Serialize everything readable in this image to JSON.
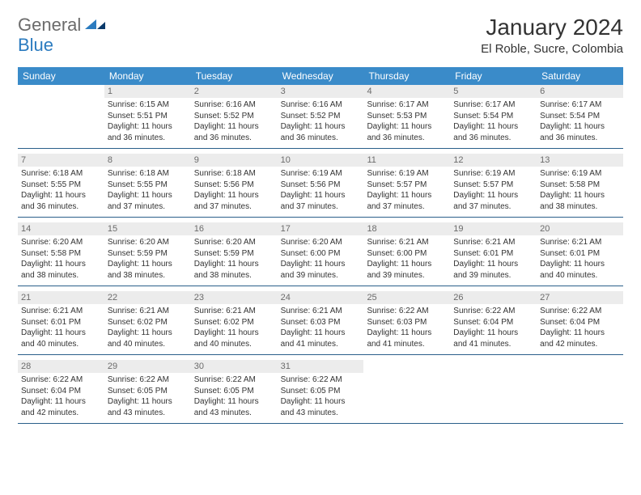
{
  "brand": {
    "part1": "General",
    "part2": "Blue"
  },
  "title": "January 2024",
  "location": "El Roble, Sucre, Colombia",
  "colors": {
    "header_bg": "#3a8bc9",
    "header_text": "#ffffff",
    "daynum_bg": "#ececec",
    "daynum_text": "#6b6b6b",
    "border": "#2a5f8a",
    "body_text": "#333333",
    "logo_gray": "#6b6b6b",
    "logo_blue": "#2b7bbf"
  },
  "weekdays": [
    "Sunday",
    "Monday",
    "Tuesday",
    "Wednesday",
    "Thursday",
    "Friday",
    "Saturday"
  ],
  "weeks": [
    [
      null,
      {
        "n": "1",
        "sr": "6:15 AM",
        "ss": "5:51 PM",
        "dl": "11 hours and 36 minutes."
      },
      {
        "n": "2",
        "sr": "6:16 AM",
        "ss": "5:52 PM",
        "dl": "11 hours and 36 minutes."
      },
      {
        "n": "3",
        "sr": "6:16 AM",
        "ss": "5:52 PM",
        "dl": "11 hours and 36 minutes."
      },
      {
        "n": "4",
        "sr": "6:17 AM",
        "ss": "5:53 PM",
        "dl": "11 hours and 36 minutes."
      },
      {
        "n": "5",
        "sr": "6:17 AM",
        "ss": "5:54 PM",
        "dl": "11 hours and 36 minutes."
      },
      {
        "n": "6",
        "sr": "6:17 AM",
        "ss": "5:54 PM",
        "dl": "11 hours and 36 minutes."
      }
    ],
    [
      {
        "n": "7",
        "sr": "6:18 AM",
        "ss": "5:55 PM",
        "dl": "11 hours and 36 minutes."
      },
      {
        "n": "8",
        "sr": "6:18 AM",
        "ss": "5:55 PM",
        "dl": "11 hours and 37 minutes."
      },
      {
        "n": "9",
        "sr": "6:18 AM",
        "ss": "5:56 PM",
        "dl": "11 hours and 37 minutes."
      },
      {
        "n": "10",
        "sr": "6:19 AM",
        "ss": "5:56 PM",
        "dl": "11 hours and 37 minutes."
      },
      {
        "n": "11",
        "sr": "6:19 AM",
        "ss": "5:57 PM",
        "dl": "11 hours and 37 minutes."
      },
      {
        "n": "12",
        "sr": "6:19 AM",
        "ss": "5:57 PM",
        "dl": "11 hours and 37 minutes."
      },
      {
        "n": "13",
        "sr": "6:19 AM",
        "ss": "5:58 PM",
        "dl": "11 hours and 38 minutes."
      }
    ],
    [
      {
        "n": "14",
        "sr": "6:20 AM",
        "ss": "5:58 PM",
        "dl": "11 hours and 38 minutes."
      },
      {
        "n": "15",
        "sr": "6:20 AM",
        "ss": "5:59 PM",
        "dl": "11 hours and 38 minutes."
      },
      {
        "n": "16",
        "sr": "6:20 AM",
        "ss": "5:59 PM",
        "dl": "11 hours and 38 minutes."
      },
      {
        "n": "17",
        "sr": "6:20 AM",
        "ss": "6:00 PM",
        "dl": "11 hours and 39 minutes."
      },
      {
        "n": "18",
        "sr": "6:21 AM",
        "ss": "6:00 PM",
        "dl": "11 hours and 39 minutes."
      },
      {
        "n": "19",
        "sr": "6:21 AM",
        "ss": "6:01 PM",
        "dl": "11 hours and 39 minutes."
      },
      {
        "n": "20",
        "sr": "6:21 AM",
        "ss": "6:01 PM",
        "dl": "11 hours and 40 minutes."
      }
    ],
    [
      {
        "n": "21",
        "sr": "6:21 AM",
        "ss": "6:01 PM",
        "dl": "11 hours and 40 minutes."
      },
      {
        "n": "22",
        "sr": "6:21 AM",
        "ss": "6:02 PM",
        "dl": "11 hours and 40 minutes."
      },
      {
        "n": "23",
        "sr": "6:21 AM",
        "ss": "6:02 PM",
        "dl": "11 hours and 40 minutes."
      },
      {
        "n": "24",
        "sr": "6:21 AM",
        "ss": "6:03 PM",
        "dl": "11 hours and 41 minutes."
      },
      {
        "n": "25",
        "sr": "6:22 AM",
        "ss": "6:03 PM",
        "dl": "11 hours and 41 minutes."
      },
      {
        "n": "26",
        "sr": "6:22 AM",
        "ss": "6:04 PM",
        "dl": "11 hours and 41 minutes."
      },
      {
        "n": "27",
        "sr": "6:22 AM",
        "ss": "6:04 PM",
        "dl": "11 hours and 42 minutes."
      }
    ],
    [
      {
        "n": "28",
        "sr": "6:22 AM",
        "ss": "6:04 PM",
        "dl": "11 hours and 42 minutes."
      },
      {
        "n": "29",
        "sr": "6:22 AM",
        "ss": "6:05 PM",
        "dl": "11 hours and 43 minutes."
      },
      {
        "n": "30",
        "sr": "6:22 AM",
        "ss": "6:05 PM",
        "dl": "11 hours and 43 minutes."
      },
      {
        "n": "31",
        "sr": "6:22 AM",
        "ss": "6:05 PM",
        "dl": "11 hours and 43 minutes."
      },
      null,
      null,
      null
    ]
  ],
  "labels": {
    "sunrise": "Sunrise:",
    "sunset": "Sunset:",
    "daylight": "Daylight:"
  }
}
